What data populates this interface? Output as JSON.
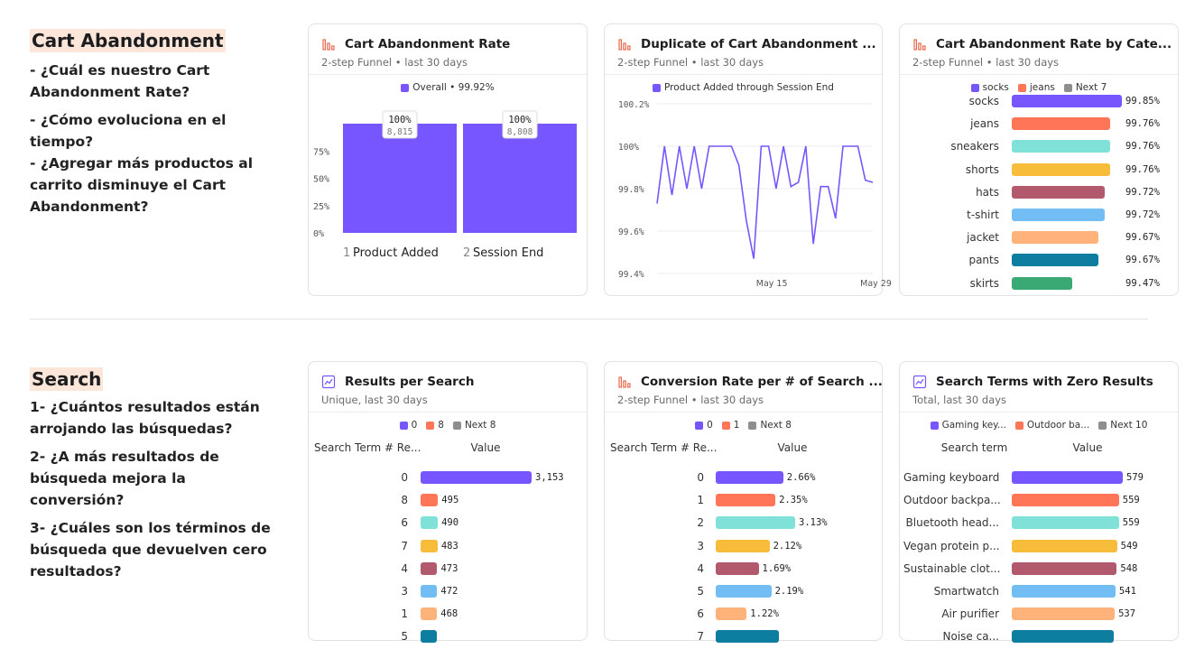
{
  "colors": {
    "purple": "#7856ff",
    "orange": "#ff7557",
    "teal": "#80e1d9",
    "yellow": "#f8bc3b",
    "plum": "#b2596e",
    "sky": "#72bef4",
    "peach": "#ffb27a",
    "petrol": "#0d7ea0",
    "green": "#3ba974",
    "gray": "#8e8e8e",
    "highlight": "#fbe6d9"
  },
  "sections": {
    "cart": {
      "title": "Cart Abandonment",
      "questions": [
        "- ¿Cuál es nuestro Cart Abandonment Rate?",
        "- ¿Cómo evoluciona en el tiempo?",
        "- ¿Agregar más productos al carrito disminuye el Cart Abandonment?"
      ]
    },
    "search": {
      "title": "Search",
      "questions": [
        "1- ¿Cuántos resultados están arrojando las búsquedas?",
        "2- ¿A más resultados de búsqueda mejora la conversión?",
        "3- ¿Cuáles son los términos de búsqueda que devuelven cero resultados?"
      ]
    }
  },
  "cards": {
    "c1": {
      "icon": "funnel-icon",
      "title": "Cart Abandonment Rate",
      "subtitle": "2-step Funnel • last 30 days",
      "legend": [
        {
          "label": "Overall • 99.92%",
          "color": "#7856ff"
        }
      ],
      "chart_data": {
        "type": "bar",
        "categories": [
          "Product Added",
          "Session End"
        ],
        "step_numbers": [
          "1",
          "2"
        ],
        "values": [
          100,
          100
        ],
        "pct_labels": [
          "100%",
          "100%"
        ],
        "count_labels": [
          "8,815",
          "8,808"
        ],
        "yticks": [
          "0%",
          "25%",
          "50%",
          "75%"
        ],
        "ylim": [
          0,
          100
        ]
      }
    },
    "c2": {
      "icon": "funnel-icon",
      "title": "Duplicate of Cart Abandonment ...",
      "subtitle": "2-step Funnel • last 30 days",
      "legend": [
        {
          "label": "Product Added through Session End",
          "color": "#7856ff"
        }
      ],
      "chart_data": {
        "type": "line",
        "ylim": [
          99.4,
          100.2
        ],
        "yticks": [
          {
            "v": 100.2,
            "label": "100.2%"
          },
          {
            "v": 100.0,
            "label": "100%"
          },
          {
            "v": 99.8,
            "label": "99.8%"
          },
          {
            "v": 99.6,
            "label": "99.6%"
          },
          {
            "v": 99.4,
            "label": "99.4%"
          }
        ],
        "xticks": [
          {
            "i": 17,
            "label": "May 15"
          },
          {
            "i": 31,
            "label": "May 29"
          }
        ],
        "values": [
          99.73,
          100.0,
          99.77,
          100.0,
          99.8,
          100.0,
          99.8,
          100.0,
          100.0,
          100.0,
          100.0,
          99.91,
          99.65,
          99.47,
          100.0,
          100.0,
          99.8,
          100.0,
          99.81,
          99.83,
          100.0,
          99.54,
          99.81,
          99.81,
          99.66,
          100.0,
          100.0,
          100.0,
          99.84,
          99.83
        ]
      }
    },
    "c3": {
      "icon": "funnel-icon",
      "title": "Cart Abandonment Rate by Cate...",
      "subtitle": "2-step Funnel • last 30 days",
      "legend": [
        {
          "label": "socks",
          "color": "#7856ff"
        },
        {
          "label": "jeans",
          "color": "#ff7557"
        },
        {
          "label": "Next 7",
          "color": "#8e8e8e"
        }
      ],
      "chart_data": {
        "type": "bar",
        "orientation": "horizontal",
        "categories": [
          "socks",
          "jeans",
          "sneakers",
          "shorts",
          "hats",
          "t-shirt",
          "jacket",
          "pants",
          "skirts"
        ],
        "values": [
          99.85,
          99.76,
          99.76,
          99.76,
          99.72,
          99.72,
          99.67,
          99.67,
          99.47
        ],
        "value_labels": [
          "99.85%",
          "99.76%",
          "99.76%",
          "99.76%",
          "99.72%",
          "99.72%",
          "99.67%",
          "99.67%",
          "99.47%"
        ],
        "colors": [
          "#7856ff",
          "#ff7557",
          "#80e1d9",
          "#f8bc3b",
          "#b2596e",
          "#72bef4",
          "#ffb27a",
          "#0d7ea0",
          "#3ba974"
        ]
      }
    },
    "c4": {
      "icon": "insights-icon",
      "title": "Results per Search",
      "subtitle": "Unique, last 30 days",
      "legend": [
        {
          "label": "0",
          "color": "#7856ff"
        },
        {
          "label": "8",
          "color": "#ff7557"
        },
        {
          "label": "Next 8",
          "color": "#8e8e8e"
        }
      ],
      "col_left": "Search Term # Re...",
      "col_right": "Value",
      "chart_data": {
        "type": "bar",
        "orientation": "horizontal",
        "categories": [
          "0",
          "8",
          "6",
          "7",
          "4",
          "3",
          "1",
          "5"
        ],
        "values": [
          3153,
          495,
          490,
          483,
          473,
          472,
          468,
          460
        ],
        "value_labels": [
          "3,153",
          "495",
          "490",
          "483",
          "473",
          "472",
          "468",
          ""
        ],
        "max": 3153,
        "colors": [
          "#7856ff",
          "#ff7557",
          "#80e1d9",
          "#f8bc3b",
          "#b2596e",
          "#72bef4",
          "#ffb27a",
          "#0d7ea0"
        ]
      }
    },
    "c5": {
      "icon": "funnel-icon",
      "title": "Conversion Rate per # of Search ...",
      "subtitle": "2-step Funnel • last 30 days",
      "legend": [
        {
          "label": "0",
          "color": "#7856ff"
        },
        {
          "label": "1",
          "color": "#ff7557"
        },
        {
          "label": "Next 8",
          "color": "#8e8e8e"
        }
      ],
      "col_left": "Search Term # Re...",
      "col_right": "Value",
      "chart_data": {
        "type": "bar",
        "orientation": "horizontal",
        "categories": [
          "0",
          "1",
          "2",
          "3",
          "4",
          "5",
          "6",
          "7"
        ],
        "values": [
          2.66,
          2.35,
          3.13,
          2.12,
          1.69,
          2.19,
          1.22,
          2.5
        ],
        "value_labels": [
          "2.66%",
          "2.35%",
          "3.13%",
          "2.12%",
          "1.69%",
          "2.19%",
          "1.22%",
          ""
        ],
        "max": 3.13,
        "colors": [
          "#7856ff",
          "#ff7557",
          "#80e1d9",
          "#f8bc3b",
          "#b2596e",
          "#72bef4",
          "#ffb27a",
          "#0d7ea0"
        ]
      }
    },
    "c6": {
      "icon": "insights-icon",
      "title": "Search Terms with Zero Results",
      "subtitle": "Total, last 30 days",
      "legend": [
        {
          "label": "Gaming key...",
          "color": "#7856ff"
        },
        {
          "label": "Outdoor ba...",
          "color": "#ff7557"
        },
        {
          "label": "Next 10",
          "color": "#8e8e8e"
        }
      ],
      "col_left": "Search term",
      "col_right": "Value",
      "chart_data": {
        "type": "bar",
        "orientation": "horizontal",
        "categories": [
          "Gaming keyboard",
          "Outdoor backpa...",
          "Bluetooth head...",
          "Vegan protein p...",
          "Sustainable clot...",
          "Smartwatch",
          "Air purifier",
          "Noise ca..."
        ],
        "values": [
          579,
          559,
          559,
          549,
          548,
          541,
          537,
          530
        ],
        "value_labels": [
          "579",
          "559",
          "559",
          "549",
          "548",
          "541",
          "537",
          ""
        ],
        "max": 579,
        "colors": [
          "#7856ff",
          "#ff7557",
          "#80e1d9",
          "#f8bc3b",
          "#b2596e",
          "#72bef4",
          "#ffb27a",
          "#0d7ea0"
        ]
      }
    }
  }
}
